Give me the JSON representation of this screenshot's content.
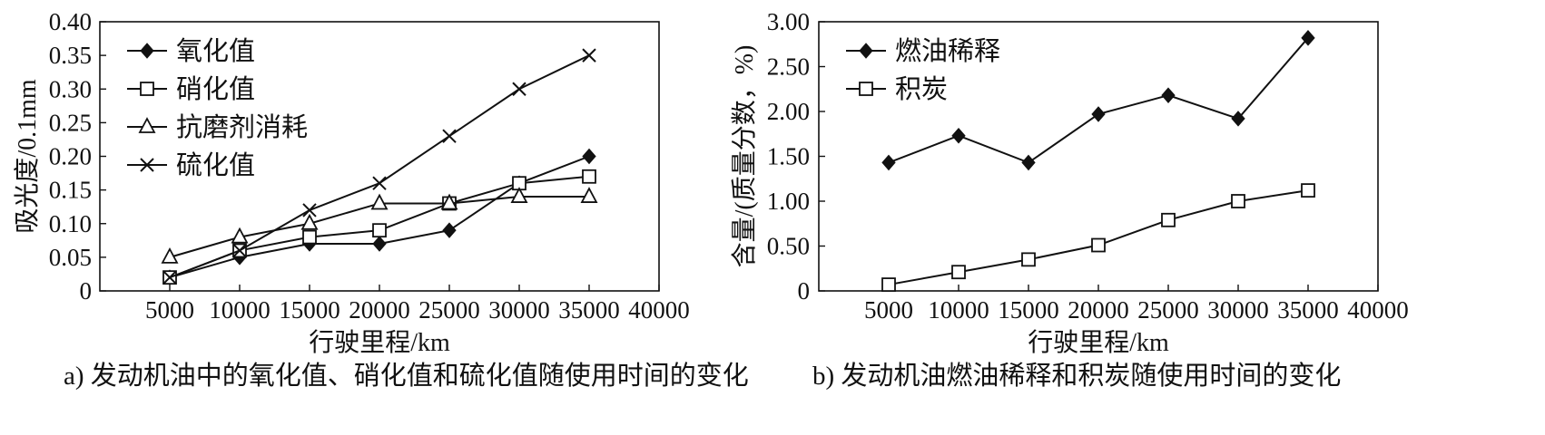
{
  "chart_data": [
    {
      "type": "line",
      "caption": "a) 发动机油中的氧化值、硝化值和硫化值随使用时间的变化",
      "xlabel": "行驶里程/km",
      "ylabel": "吸光度/0.1mm",
      "xlim": [
        0,
        40000
      ],
      "ylim": [
        0,
        0.4
      ],
      "xticks": [
        5000,
        10000,
        15000,
        20000,
        25000,
        30000,
        35000,
        40000
      ],
      "xtick_labels": [
        "5000",
        "10000",
        "15000",
        "20000",
        "25000",
        "30000",
        "35000",
        "40000"
      ],
      "yticks": [
        0,
        0.05,
        0.1,
        0.15,
        0.2,
        0.25,
        0.3,
        0.35,
        0.4
      ],
      "ytick_labels": [
        "0",
        "0.05",
        "0.10",
        "0.15",
        "0.20",
        "0.25",
        "0.30",
        "0.35",
        "0.40"
      ],
      "grid": false,
      "legend_position": "top-left",
      "x": [
        5000,
        10000,
        15000,
        20000,
        25000,
        30000,
        35000
      ],
      "series": [
        {
          "name": "氧化值",
          "marker": "diamond-filled",
          "values": [
            0.02,
            0.05,
            0.07,
            0.07,
            0.09,
            0.16,
            0.2
          ]
        },
        {
          "name": "硝化值",
          "marker": "square-open",
          "values": [
            0.02,
            0.06,
            0.08,
            0.09,
            0.13,
            0.16,
            0.17
          ]
        },
        {
          "name": "抗磨剂消耗",
          "marker": "triangle-open",
          "values": [
            0.05,
            0.08,
            0.1,
            0.13,
            0.13,
            0.14,
            0.14
          ]
        },
        {
          "name": "硫化值",
          "marker": "cross",
          "values": [
            0.02,
            0.06,
            0.12,
            0.16,
            0.23,
            0.3,
            0.35
          ]
        }
      ]
    },
    {
      "type": "line",
      "caption": "b) 发动机油燃油稀释和积炭随使用时间的变化",
      "xlabel": "行驶里程/km",
      "ylabel": "含量/(质量分数，%)",
      "xlim": [
        0,
        40000
      ],
      "ylim": [
        0,
        3.0
      ],
      "xticks": [
        5000,
        10000,
        15000,
        20000,
        25000,
        30000,
        35000,
        40000
      ],
      "xtick_labels": [
        "5000",
        "10000",
        "15000",
        "20000",
        "25000",
        "30000",
        "35000",
        "40000"
      ],
      "yticks": [
        0,
        0.5,
        1.0,
        1.5,
        2.0,
        2.5,
        3.0
      ],
      "ytick_labels": [
        "0",
        "0.50",
        "1.00",
        "1.50",
        "2.00",
        "2.50",
        "3.00"
      ],
      "grid": false,
      "legend_position": "top-left",
      "x": [
        5000,
        10000,
        15000,
        20000,
        25000,
        30000,
        35000
      ],
      "series": [
        {
          "name": "燃油稀释",
          "marker": "diamond-filled",
          "values": [
            1.43,
            1.73,
            1.43,
            1.97,
            2.18,
            1.92,
            2.82
          ]
        },
        {
          "name": "积炭",
          "marker": "square-open",
          "values": [
            0.07,
            0.21,
            0.35,
            0.51,
            0.79,
            1.0,
            1.12
          ]
        }
      ]
    }
  ]
}
